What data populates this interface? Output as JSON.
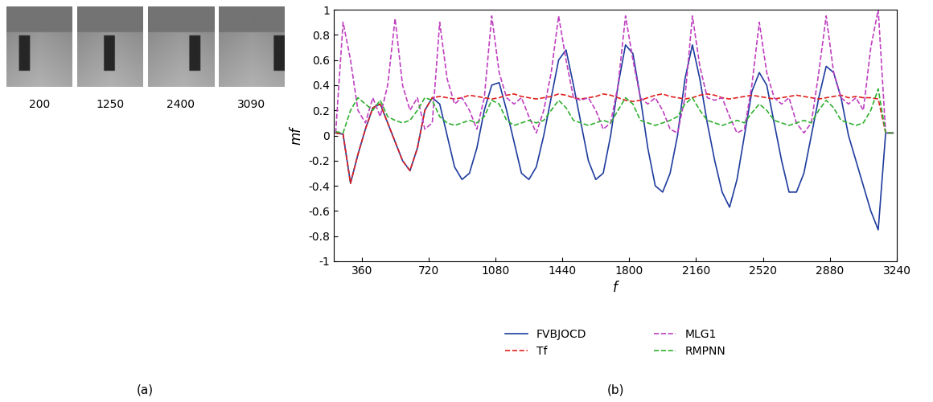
{
  "frames": {
    "panel_label": "(a)",
    "labels": [
      200,
      1250,
      2400,
      3090
    ]
  },
  "chart_data": {
    "type": "line",
    "panel_label": "(b)",
    "x_label": "f",
    "y_label": "mf",
    "xlim": [
      210,
      3240
    ],
    "xticks": [
      360,
      720,
      1080,
      1440,
      1800,
      2160,
      2520,
      2880,
      3240
    ],
    "ylim": [
      -1,
      1
    ],
    "yticks": [
      -1,
      -0.8,
      -0.6,
      -0.4,
      -0.2,
      0,
      0.2,
      0.4,
      0.6,
      0.8,
      1
    ],
    "legend": "lower center",
    "x": [
      220,
      260,
      300,
      340,
      380,
      420,
      460,
      500,
      540,
      580,
      620,
      660,
      700,
      740,
      780,
      820,
      860,
      900,
      940,
      980,
      1020,
      1060,
      1100,
      1140,
      1180,
      1220,
      1260,
      1300,
      1340,
      1380,
      1420,
      1460,
      1500,
      1540,
      1580,
      1620,
      1660,
      1700,
      1740,
      1780,
      1820,
      1860,
      1900,
      1940,
      1980,
      2020,
      2060,
      2100,
      2140,
      2180,
      2220,
      2260,
      2300,
      2340,
      2380,
      2420,
      2460,
      2500,
      2540,
      2580,
      2620,
      2660,
      2700,
      2740,
      2780,
      2820,
      2860,
      2900,
      2940,
      2980,
      3020,
      3060,
      3100,
      3140,
      3180,
      3220
    ],
    "series": [
      {
        "name": "FVBJOCD",
        "color": "#1f3c9e",
        "line_style": "solid",
        "values": [
          0.02,
          0.01,
          -0.38,
          -0.15,
          0.05,
          0.22,
          0.25,
          0.1,
          -0.05,
          -0.2,
          -0.28,
          -0.1,
          0.2,
          0.3,
          0.25,
          0.0,
          -0.25,
          -0.35,
          -0.3,
          -0.1,
          0.2,
          0.4,
          0.42,
          0.2,
          -0.05,
          -0.3,
          -0.35,
          -0.25,
          0.0,
          0.3,
          0.6,
          0.68,
          0.4,
          0.1,
          -0.2,
          -0.35,
          -0.3,
          0.0,
          0.4,
          0.72,
          0.65,
          0.3,
          -0.1,
          -0.4,
          -0.45,
          -0.3,
          0.0,
          0.45,
          0.72,
          0.45,
          0.1,
          -0.2,
          -0.45,
          -0.57,
          -0.35,
          0.0,
          0.35,
          0.5,
          0.4,
          0.1,
          -0.2,
          -0.45,
          -0.45,
          -0.3,
          0.0,
          0.3,
          0.55,
          0.5,
          0.3,
          0.0,
          -0.2,
          -0.4,
          -0.6,
          -0.75,
          0.02,
          0.02
        ]
      },
      {
        "name": "Tf",
        "color": "#e0201e",
        "line_style": "dashed",
        "values": [
          0.02,
          0.01,
          -0.38,
          -0.15,
          0.05,
          0.22,
          0.25,
          0.1,
          -0.05,
          -0.2,
          -0.28,
          -0.1,
          0.2,
          0.3,
          0.31,
          0.3,
          0.29,
          0.3,
          0.32,
          0.31,
          0.3,
          0.29,
          0.3,
          0.32,
          0.33,
          0.31,
          0.3,
          0.29,
          0.3,
          0.31,
          0.33,
          0.32,
          0.3,
          0.29,
          0.3,
          0.31,
          0.33,
          0.32,
          0.3,
          0.28,
          0.27,
          0.28,
          0.3,
          0.32,
          0.33,
          0.31,
          0.3,
          0.29,
          0.3,
          0.32,
          0.33,
          0.32,
          0.3,
          0.29,
          0.3,
          0.31,
          0.32,
          0.31,
          0.3,
          0.29,
          0.3,
          0.31,
          0.32,
          0.31,
          0.3,
          0.29,
          0.3,
          0.31,
          0.32,
          0.3,
          0.31,
          0.3,
          0.3,
          0.29,
          0.02,
          0.02
        ]
      },
      {
        "name": "MLG1",
        "color": "#c040c0",
        "line_style": "dashed",
        "values": [
          0.02,
          0.9,
          0.6,
          0.2,
          0.1,
          0.3,
          0.15,
          0.4,
          0.93,
          0.4,
          0.2,
          0.3,
          0.05,
          0.1,
          0.9,
          0.45,
          0.25,
          0.3,
          0.2,
          0.05,
          0.3,
          0.95,
          0.5,
          0.3,
          0.25,
          0.3,
          0.15,
          0.02,
          0.2,
          0.5,
          0.95,
          0.6,
          0.3,
          0.28,
          0.3,
          0.2,
          0.05,
          0.1,
          0.4,
          0.95,
          0.6,
          0.3,
          0.25,
          0.3,
          0.2,
          0.05,
          0.02,
          0.3,
          0.95,
          0.55,
          0.3,
          0.28,
          0.3,
          0.15,
          0.02,
          0.05,
          0.4,
          0.9,
          0.5,
          0.3,
          0.25,
          0.3,
          0.1,
          0.02,
          0.1,
          0.5,
          0.95,
          0.5,
          0.3,
          0.25,
          0.3,
          0.2,
          0.7,
          1.0,
          0.02,
          0.02
        ]
      },
      {
        "name": "RMPNN",
        "color": "#30b030",
        "line_style": "dashed",
        "values": [
          0.03,
          0.02,
          0.2,
          0.3,
          0.25,
          0.2,
          0.28,
          0.15,
          0.12,
          0.1,
          0.12,
          0.2,
          0.3,
          0.28,
          0.15,
          0.1,
          0.08,
          0.1,
          0.12,
          0.1,
          0.15,
          0.28,
          0.25,
          0.12,
          0.08,
          0.1,
          0.12,
          0.1,
          0.12,
          0.2,
          0.28,
          0.22,
          0.12,
          0.1,
          0.08,
          0.1,
          0.12,
          0.1,
          0.2,
          0.3,
          0.25,
          0.12,
          0.1,
          0.08,
          0.1,
          0.12,
          0.15,
          0.25,
          0.3,
          0.2,
          0.12,
          0.1,
          0.08,
          0.1,
          0.12,
          0.1,
          0.18,
          0.25,
          0.2,
          0.12,
          0.1,
          0.08,
          0.1,
          0.12,
          0.1,
          0.2,
          0.28,
          0.22,
          0.12,
          0.1,
          0.08,
          0.1,
          0.2,
          0.37,
          0.02,
          0.02
        ]
      }
    ]
  }
}
